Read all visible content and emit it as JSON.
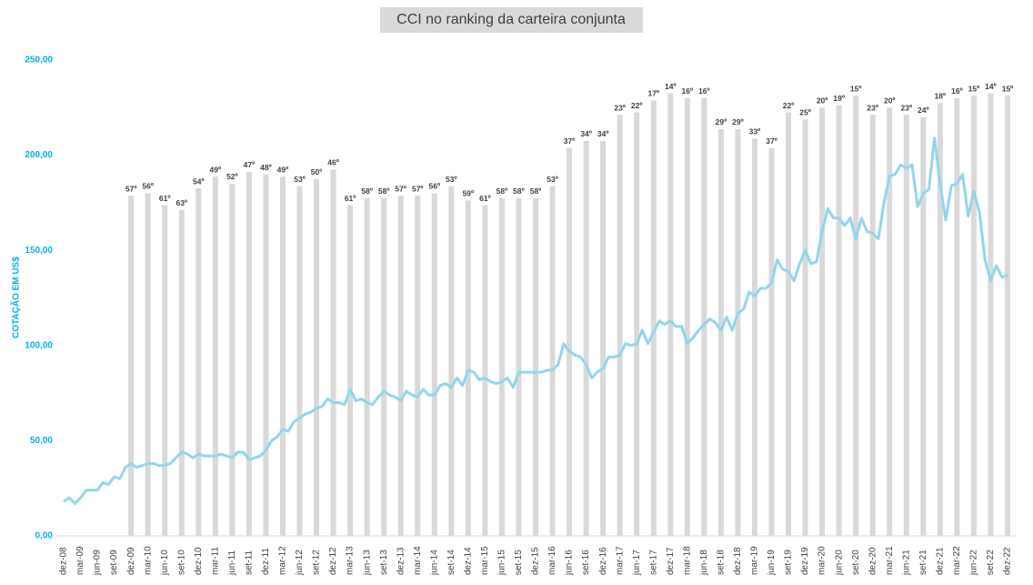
{
  "chart_data": {
    "type": "combo",
    "title": "CCI no ranking da carteira conjunta",
    "ylabel": "COTAÇÃO EM US$",
    "categories": [
      "dez-08",
      null,
      null,
      "mar-09",
      null,
      null,
      "jun-09",
      null,
      null,
      "set-09",
      null,
      null,
      "dez-09",
      null,
      null,
      "mar-10",
      null,
      null,
      "jun-10",
      null,
      null,
      "set-10",
      null,
      null,
      "dez-10",
      null,
      null,
      "mar-11",
      null,
      null,
      "jun-11",
      null,
      null,
      "set-11",
      null,
      null,
      "dez-11",
      null,
      null,
      "mar-12",
      null,
      null,
      "jun-12",
      null,
      null,
      "set-12",
      null,
      null,
      "dez-12",
      null,
      null,
      "mar-13",
      null,
      null,
      "jun-13",
      null,
      null,
      "set-13",
      null,
      null,
      "dez-13",
      null,
      null,
      "mar-14",
      null,
      null,
      "jun-14",
      null,
      null,
      "set-14",
      null,
      null,
      "dez-14",
      null,
      null,
      "mar-15",
      null,
      null,
      "jun-15",
      null,
      null,
      "set-15",
      null,
      null,
      "dez-15",
      null,
      null,
      "mar-16",
      null,
      null,
      "jun-16",
      null,
      null,
      "set-16",
      null,
      null,
      "dez-16",
      null,
      null,
      "mar-17",
      null,
      null,
      "jun-17",
      null,
      null,
      "set-17",
      null,
      null,
      "dez-17",
      null,
      null,
      "mar-18",
      null,
      null,
      "jun-18",
      null,
      null,
      "set-18",
      null,
      null,
      "dez-18",
      null,
      null,
      "mar-19",
      null,
      null,
      "jun-19",
      null,
      null,
      "set-19",
      null,
      null,
      "dez-19",
      null,
      null,
      "mar-20",
      null,
      null,
      "jun-20",
      null,
      null,
      "set-20",
      null,
      null,
      "dez-20",
      null,
      null,
      "mar-21",
      null,
      null,
      "jun-21",
      null,
      null,
      "set-21",
      null,
      null,
      "dez-21",
      null,
      null,
      "mar-22",
      null,
      null,
      "jun-22",
      null,
      null,
      "set-22",
      null,
      null,
      "dez-22"
    ],
    "series": [
      {
        "type": "bar",
        "axis": "y2",
        "color": "#d9d9d9",
        "values": [
          null,
          null,
          null,
          null,
          null,
          null,
          null,
          null,
          null,
          null,
          null,
          null,
          57,
          null,
          null,
          56,
          null,
          null,
          61,
          null,
          null,
          63,
          null,
          null,
          54,
          null,
          null,
          49,
          null,
          null,
          52,
          null,
          null,
          47,
          null,
          null,
          48,
          null,
          null,
          49,
          null,
          null,
          53,
          null,
          null,
          50,
          null,
          null,
          46,
          null,
          null,
          61,
          null,
          null,
          58,
          null,
          null,
          58,
          null,
          null,
          57,
          null,
          null,
          57,
          null,
          null,
          56,
          null,
          null,
          53,
          null,
          null,
          59,
          null,
          null,
          61,
          null,
          null,
          58,
          null,
          null,
          58,
          null,
          null,
          58,
          null,
          null,
          53,
          null,
          null,
          37,
          null,
          null,
          34,
          null,
          null,
          34,
          null,
          null,
          23,
          null,
          null,
          22,
          null,
          null,
          17,
          null,
          null,
          14,
          null,
          null,
          16,
          null,
          null,
          16,
          null,
          null,
          29,
          null,
          null,
          29,
          null,
          null,
          33,
          null,
          null,
          37,
          null,
          null,
          22,
          null,
          null,
          25,
          null,
          null,
          20,
          null,
          null,
          19,
          null,
          null,
          15,
          null,
          null,
          23,
          null,
          null,
          20,
          null,
          null,
          23,
          null,
          null,
          24,
          null,
          null,
          18,
          null,
          null,
          16,
          null,
          null,
          15,
          null,
          null,
          14,
          null,
          null,
          15
        ],
        "value_labels": [
          null,
          null,
          null,
          null,
          null,
          null,
          null,
          null,
          null,
          null,
          null,
          null,
          "57º",
          null,
          null,
          "56º",
          null,
          null,
          "61º",
          null,
          null,
          "63º",
          null,
          null,
          "54º",
          null,
          null,
          "49º",
          null,
          null,
          "52º",
          null,
          null,
          "47º",
          null,
          null,
          "48º",
          null,
          null,
          "49º",
          null,
          null,
          "53º",
          null,
          null,
          "50º",
          null,
          null,
          "46º",
          null,
          null,
          "61º",
          null,
          null,
          "58º",
          null,
          null,
          "58º",
          null,
          null,
          "57º",
          null,
          null,
          "57º",
          null,
          null,
          "56º",
          null,
          null,
          "53º",
          null,
          null,
          "59º",
          null,
          null,
          "61º",
          null,
          null,
          "58º",
          null,
          null,
          "58º",
          null,
          null,
          "58º",
          null,
          null,
          "53º",
          null,
          null,
          "37º",
          null,
          null,
          "34º",
          null,
          null,
          "34º",
          null,
          null,
          "23º",
          null,
          null,
          "22º",
          null,
          null,
          "17º",
          null,
          null,
          "14º",
          null,
          null,
          "16º",
          null,
          null,
          "16º",
          null,
          null,
          "29º",
          null,
          null,
          "29º",
          null,
          null,
          "33º",
          null,
          null,
          "37º",
          null,
          null,
          "22º",
          null,
          null,
          "25º",
          null,
          null,
          "20º",
          null,
          null,
          "19º",
          null,
          null,
          "15º",
          null,
          null,
          "23º",
          null,
          null,
          "20º",
          null,
          null,
          "23º",
          null,
          null,
          "24º",
          null,
          null,
          "18º",
          null,
          null,
          "16º",
          null,
          null,
          "15º",
          null,
          null,
          "14º",
          null,
          null,
          "15º"
        ]
      },
      {
        "type": "line",
        "color": "#92d6ec",
        "values": [
          18,
          20,
          17,
          20,
          24,
          24,
          24,
          28,
          27,
          31,
          30,
          36,
          38,
          36,
          37,
          38,
          38,
          37,
          37,
          38,
          41,
          44,
          43,
          41,
          43,
          42,
          42,
          42,
          43,
          42,
          41,
          44,
          44,
          40,
          41,
          42,
          45,
          50,
          52,
          56,
          55,
          60,
          62,
          64,
          65,
          67,
          68,
          72,
          70,
          70,
          69,
          77,
          71,
          72,
          70,
          69,
          73,
          76,
          74,
          73,
          71,
          76,
          74,
          73,
          77,
          74,
          74,
          79,
          80,
          78,
          83,
          79,
          87,
          86,
          82,
          83,
          81,
          80,
          81,
          83,
          78,
          86,
          86,
          86,
          86,
          86,
          87,
          87,
          90,
          101,
          97,
          95,
          94,
          90,
          83,
          86,
          88,
          94,
          94,
          95,
          101,
          100,
          101,
          108,
          101,
          107,
          113,
          111,
          113,
          110,
          110,
          101,
          104,
          108,
          111,
          114,
          112,
          108,
          115,
          108,
          117,
          119,
          128,
          126,
          130,
          130,
          133,
          145,
          140,
          139,
          134,
          143,
          150,
          143,
          144,
          160,
          172,
          167,
          167,
          163,
          167,
          156,
          167,
          160,
          159,
          156,
          175,
          189,
          190,
          195,
          193,
          195,
          173,
          180,
          182,
          209,
          185,
          166,
          184,
          185,
          190,
          168,
          181,
          170,
          145,
          134,
          142,
          136,
          137
        ]
      }
    ],
    "ylim": [
      0,
      250
    ],
    "yticks": [
      {
        "value": 0,
        "label": "0,00"
      },
      {
        "value": 50,
        "label": "50,00"
      },
      {
        "value": 100,
        "label": "100,00"
      },
      {
        "value": 150,
        "label": "150,00"
      },
      {
        "value": 200,
        "label": "200,00"
      },
      {
        "value": 250,
        "label": "250,00"
      }
    ],
    "y2lim": [
      200,
      0
    ]
  }
}
